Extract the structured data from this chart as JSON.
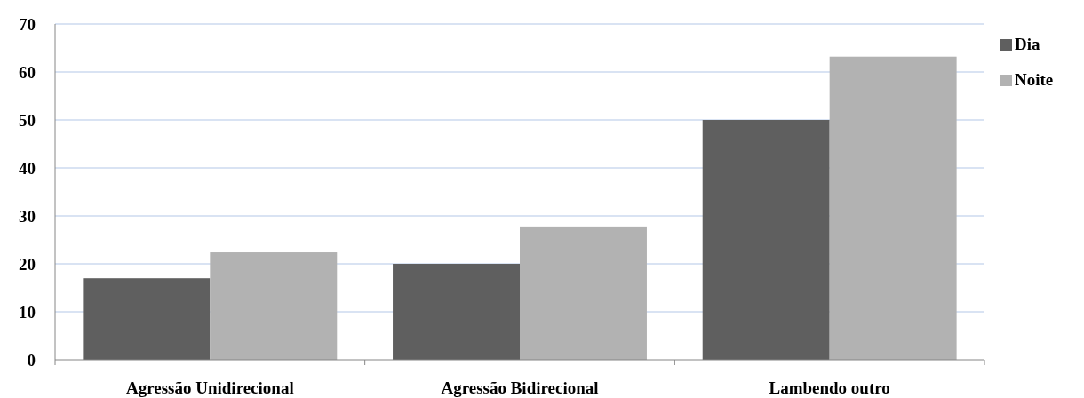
{
  "chart_data": {
    "type": "bar",
    "categories": [
      "Agressão Unidirecional",
      "Agressão Bidirecional",
      "Lambendo outro"
    ],
    "series": [
      {
        "name": "Dia",
        "color": "#5f5f5f",
        "values": [
          17,
          20,
          50
        ]
      },
      {
        "name": "Noite",
        "color": "#b2b2b2",
        "values": [
          22.4,
          27.8,
          63.2
        ]
      }
    ],
    "ylim": [
      0,
      70
    ],
    "yticks": [
      0,
      10,
      20,
      30,
      40,
      50,
      60,
      70
    ],
    "grid": "y",
    "legend": "top right"
  }
}
